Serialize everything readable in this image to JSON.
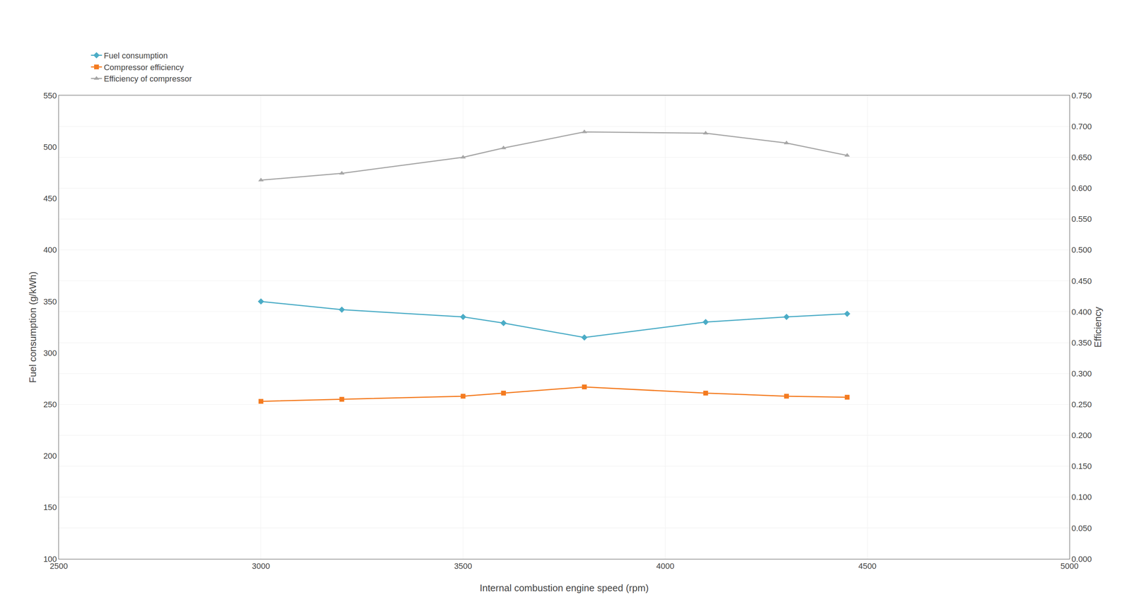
{
  "chart_data": {
    "type": "line",
    "x_label": "Internal combustion engine speed (rpm)",
    "y_label": "Fuel consumption (g/kWh)",
    "y2_label": "Efficiency",
    "x": [
      3000,
      3200,
      3500,
      3600,
      3800,
      4100,
      4300,
      4450
    ],
    "series": [
      {
        "name": "Fuel consumption",
        "color": "#4BACC6",
        "marker": "diamond",
        "values": [
          350,
          342,
          335,
          329,
          315,
          330,
          335,
          338
        ]
      },
      {
        "name": "Compressor efficiency",
        "color": "#F47B20",
        "marker": "square",
        "values": [
          253,
          255,
          258,
          261,
          267,
          261,
          258,
          257
        ]
      },
      {
        "name": "Efficiency of compressor",
        "color": "#A6A6A6",
        "marker": "triangle-up",
        "axis": "y2",
        "values": [
          0.613,
          0.624,
          0.65,
          0.665,
          0.691,
          0.689,
          0.673,
          0.653
        ]
      }
    ],
    "xlim": [
      2500,
      5000
    ],
    "xticks": [
      2500,
      3000,
      3500,
      4000,
      4500,
      5000
    ],
    "ylim": [
      100,
      550
    ],
    "yticks": [
      100,
      150,
      200,
      250,
      300,
      350,
      400,
      450,
      500,
      550
    ],
    "y2lim": [
      0.0,
      0.75
    ],
    "y2ticks": [
      {
        "value": 0.0,
        "label": "0.000"
      },
      {
        "value": 0.05,
        "label": "0.050"
      },
      {
        "value": 0.1,
        "label": "0.100"
      },
      {
        "value": 0.15,
        "label": "0.150"
      },
      {
        "value": 0.2,
        "label": "0.200"
      },
      {
        "value": 0.25,
        "label": "0.250"
      },
      {
        "value": 0.3,
        "label": "0.300"
      },
      {
        "value": 0.35,
        "label": "0.350"
      },
      {
        "value": 0.4,
        "label": "0.400"
      },
      {
        "value": 0.45,
        "label": "0.450"
      },
      {
        "value": 0.5,
        "label": "0.500"
      },
      {
        "value": 0.55,
        "label": "0.550"
      },
      {
        "value": 0.6,
        "label": "0.600"
      },
      {
        "value": 0.65,
        "label": "0.650"
      },
      {
        "value": 0.7,
        "label": "0.700"
      },
      {
        "value": 0.75,
        "label": "0.750"
      }
    ],
    "grid": true,
    "legend": "upper left"
  }
}
